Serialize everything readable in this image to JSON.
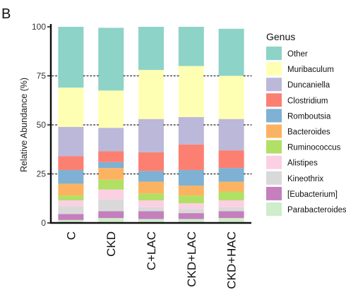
{
  "panel_label": "B",
  "chart_data": {
    "type": "bar",
    "stacked": true,
    "title": "",
    "xlabel": "",
    "ylabel": "Relative Abundance (%)",
    "ylim": [
      0,
      100
    ],
    "yticks": [
      0,
      25,
      50,
      75,
      100
    ],
    "reference_lines": [
      25,
      50,
      75
    ],
    "grid": false,
    "legend_title": "Genus",
    "legend_position": "right",
    "categories": [
      "C",
      "CKD",
      "C+LAC",
      "CKD+LAC",
      "CKD+HAC"
    ],
    "series": [
      {
        "name": "Parabacteroides",
        "color": "#cfeccb",
        "values": [
          1.5,
          2.5,
          2,
          2,
          2.5
        ]
      },
      {
        "name": "[Eubacterium]",
        "color": "#c57fbd",
        "values": [
          3,
          3.5,
          4,
          3,
          3.5
        ]
      },
      {
        "name": "Kineothrix",
        "color": "#d9d9d9",
        "values": [
          4,
          6,
          2,
          2,
          2
        ]
      },
      {
        "name": "Alistipes",
        "color": "#fcd0e3",
        "values": [
          3,
          5,
          3.5,
          3,
          3.5
        ]
      },
      {
        "name": "Ruminococcus",
        "color": "#b2df66",
        "values": [
          2.5,
          5,
          3.5,
          4,
          4.5
        ]
      },
      {
        "name": "Bacteroides",
        "color": "#fcb361",
        "values": [
          6,
          6,
          6,
          5,
          5
        ]
      },
      {
        "name": "Romboutsia",
        "color": "#7eb1d4",
        "values": [
          7,
          3,
          5.5,
          8,
          7
        ]
      },
      {
        "name": "Clostridium",
        "color": "#fb8072",
        "values": [
          7,
          5.5,
          9.5,
          13,
          9
        ]
      },
      {
        "name": "Duncaniella",
        "color": "#bcb8da",
        "values": [
          15,
          12,
          17,
          14,
          16
        ]
      },
      {
        "name": "Muribaculum",
        "color": "#ffffb3",
        "values": [
          20,
          19,
          25,
          26,
          22
        ]
      },
      {
        "name": "Other",
        "color": "#8dd3c7",
        "values": [
          31,
          32,
          22,
          20,
          24
        ]
      }
    ]
  }
}
